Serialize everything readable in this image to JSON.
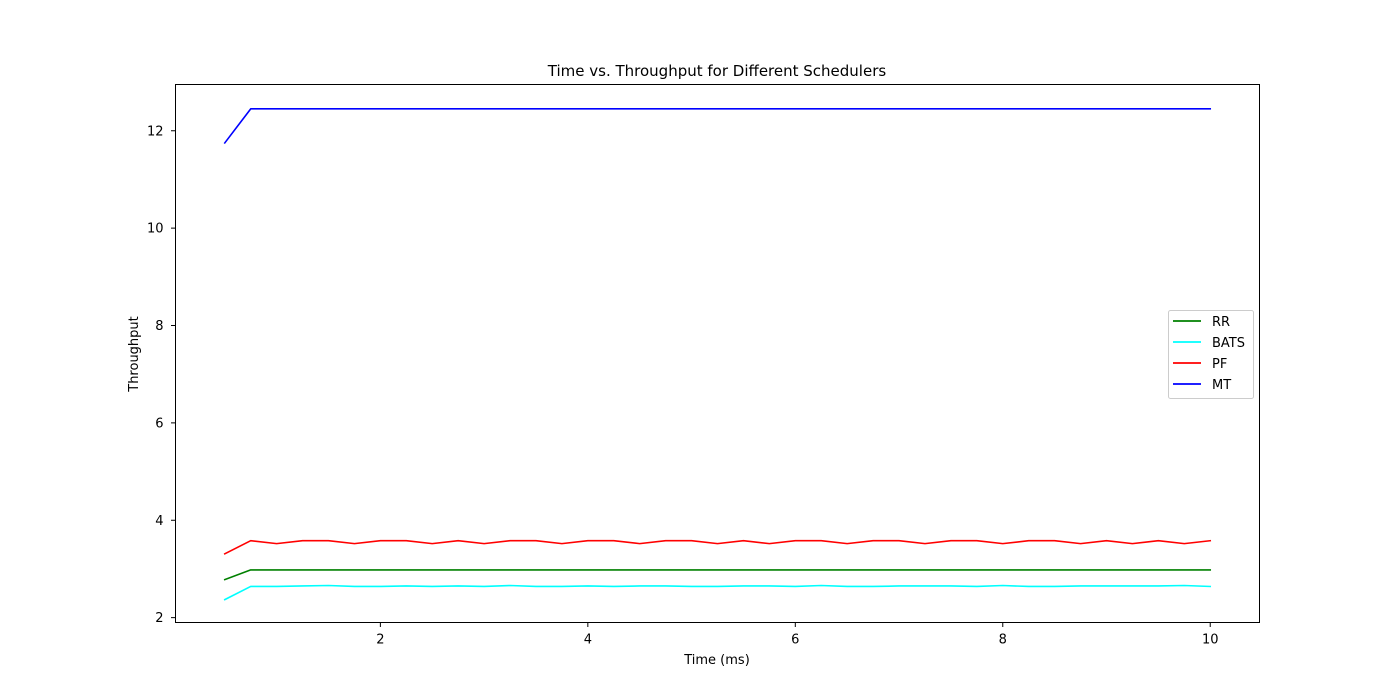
{
  "chart_data": {
    "type": "line",
    "title": "Time vs. Throughput for Different Schedulers",
    "xlabel": "Time (ms)",
    "ylabel": "Throughput",
    "xlim": [
      0.025,
      10.475
    ],
    "ylim": [
      1.9,
      12.95
    ],
    "xticks": [
      2,
      4,
      6,
      8,
      10
    ],
    "yticks": [
      2,
      4,
      6,
      8,
      10,
      12
    ],
    "grid": false,
    "legend_position": "center-right",
    "x": [
      0.5,
      0.75,
      1.0,
      1.25,
      1.5,
      1.75,
      2.0,
      2.25,
      2.5,
      2.75,
      3.0,
      3.25,
      3.5,
      3.75,
      4.0,
      4.25,
      4.5,
      4.75,
      5.0,
      5.25,
      5.5,
      5.75,
      6.0,
      6.25,
      6.5,
      6.75,
      7.0,
      7.25,
      7.5,
      7.75,
      8.0,
      8.25,
      8.5,
      8.75,
      9.0,
      9.25,
      9.5,
      9.75,
      10.0
    ],
    "series": [
      {
        "name": "RR",
        "color": "#008000",
        "values": [
          2.78,
          2.98,
          2.98,
          2.98,
          2.98,
          2.98,
          2.98,
          2.98,
          2.98,
          2.98,
          2.98,
          2.98,
          2.98,
          2.98,
          2.98,
          2.98,
          2.98,
          2.98,
          2.98,
          2.98,
          2.98,
          2.98,
          2.98,
          2.98,
          2.98,
          2.98,
          2.98,
          2.98,
          2.98,
          2.98,
          2.98,
          2.98,
          2.98,
          2.98,
          2.98,
          2.98,
          2.98,
          2.98,
          2.98
        ]
      },
      {
        "name": "BATS",
        "color": "#00ffff",
        "values": [
          2.37,
          2.64,
          2.64,
          2.65,
          2.66,
          2.64,
          2.64,
          2.65,
          2.64,
          2.65,
          2.64,
          2.66,
          2.64,
          2.64,
          2.65,
          2.64,
          2.65,
          2.65,
          2.64,
          2.64,
          2.65,
          2.65,
          2.64,
          2.66,
          2.64,
          2.64,
          2.65,
          2.65,
          2.65,
          2.64,
          2.66,
          2.64,
          2.64,
          2.65,
          2.65,
          2.65,
          2.65,
          2.66,
          2.64
        ]
      },
      {
        "name": "PF",
        "color": "#ff0000",
        "values": [
          3.31,
          3.58,
          3.52,
          3.58,
          3.58,
          3.52,
          3.58,
          3.58,
          3.52,
          3.58,
          3.52,
          3.58,
          3.58,
          3.52,
          3.58,
          3.58,
          3.52,
          3.58,
          3.58,
          3.52,
          3.58,
          3.52,
          3.58,
          3.58,
          3.52,
          3.58,
          3.58,
          3.52,
          3.58,
          3.58,
          3.52,
          3.58,
          3.58,
          3.52,
          3.58,
          3.52,
          3.58,
          3.52,
          3.58
        ]
      },
      {
        "name": "MT",
        "color": "#0000ff",
        "values": [
          11.75,
          12.45,
          12.45,
          12.45,
          12.45,
          12.45,
          12.45,
          12.45,
          12.45,
          12.45,
          12.45,
          12.45,
          12.45,
          12.45,
          12.45,
          12.45,
          12.45,
          12.45,
          12.45,
          12.45,
          12.45,
          12.45,
          12.45,
          12.45,
          12.45,
          12.45,
          12.45,
          12.45,
          12.45,
          12.45,
          12.45,
          12.45,
          12.45,
          12.45,
          12.45,
          12.45,
          12.45,
          12.45,
          12.45
        ]
      }
    ]
  }
}
